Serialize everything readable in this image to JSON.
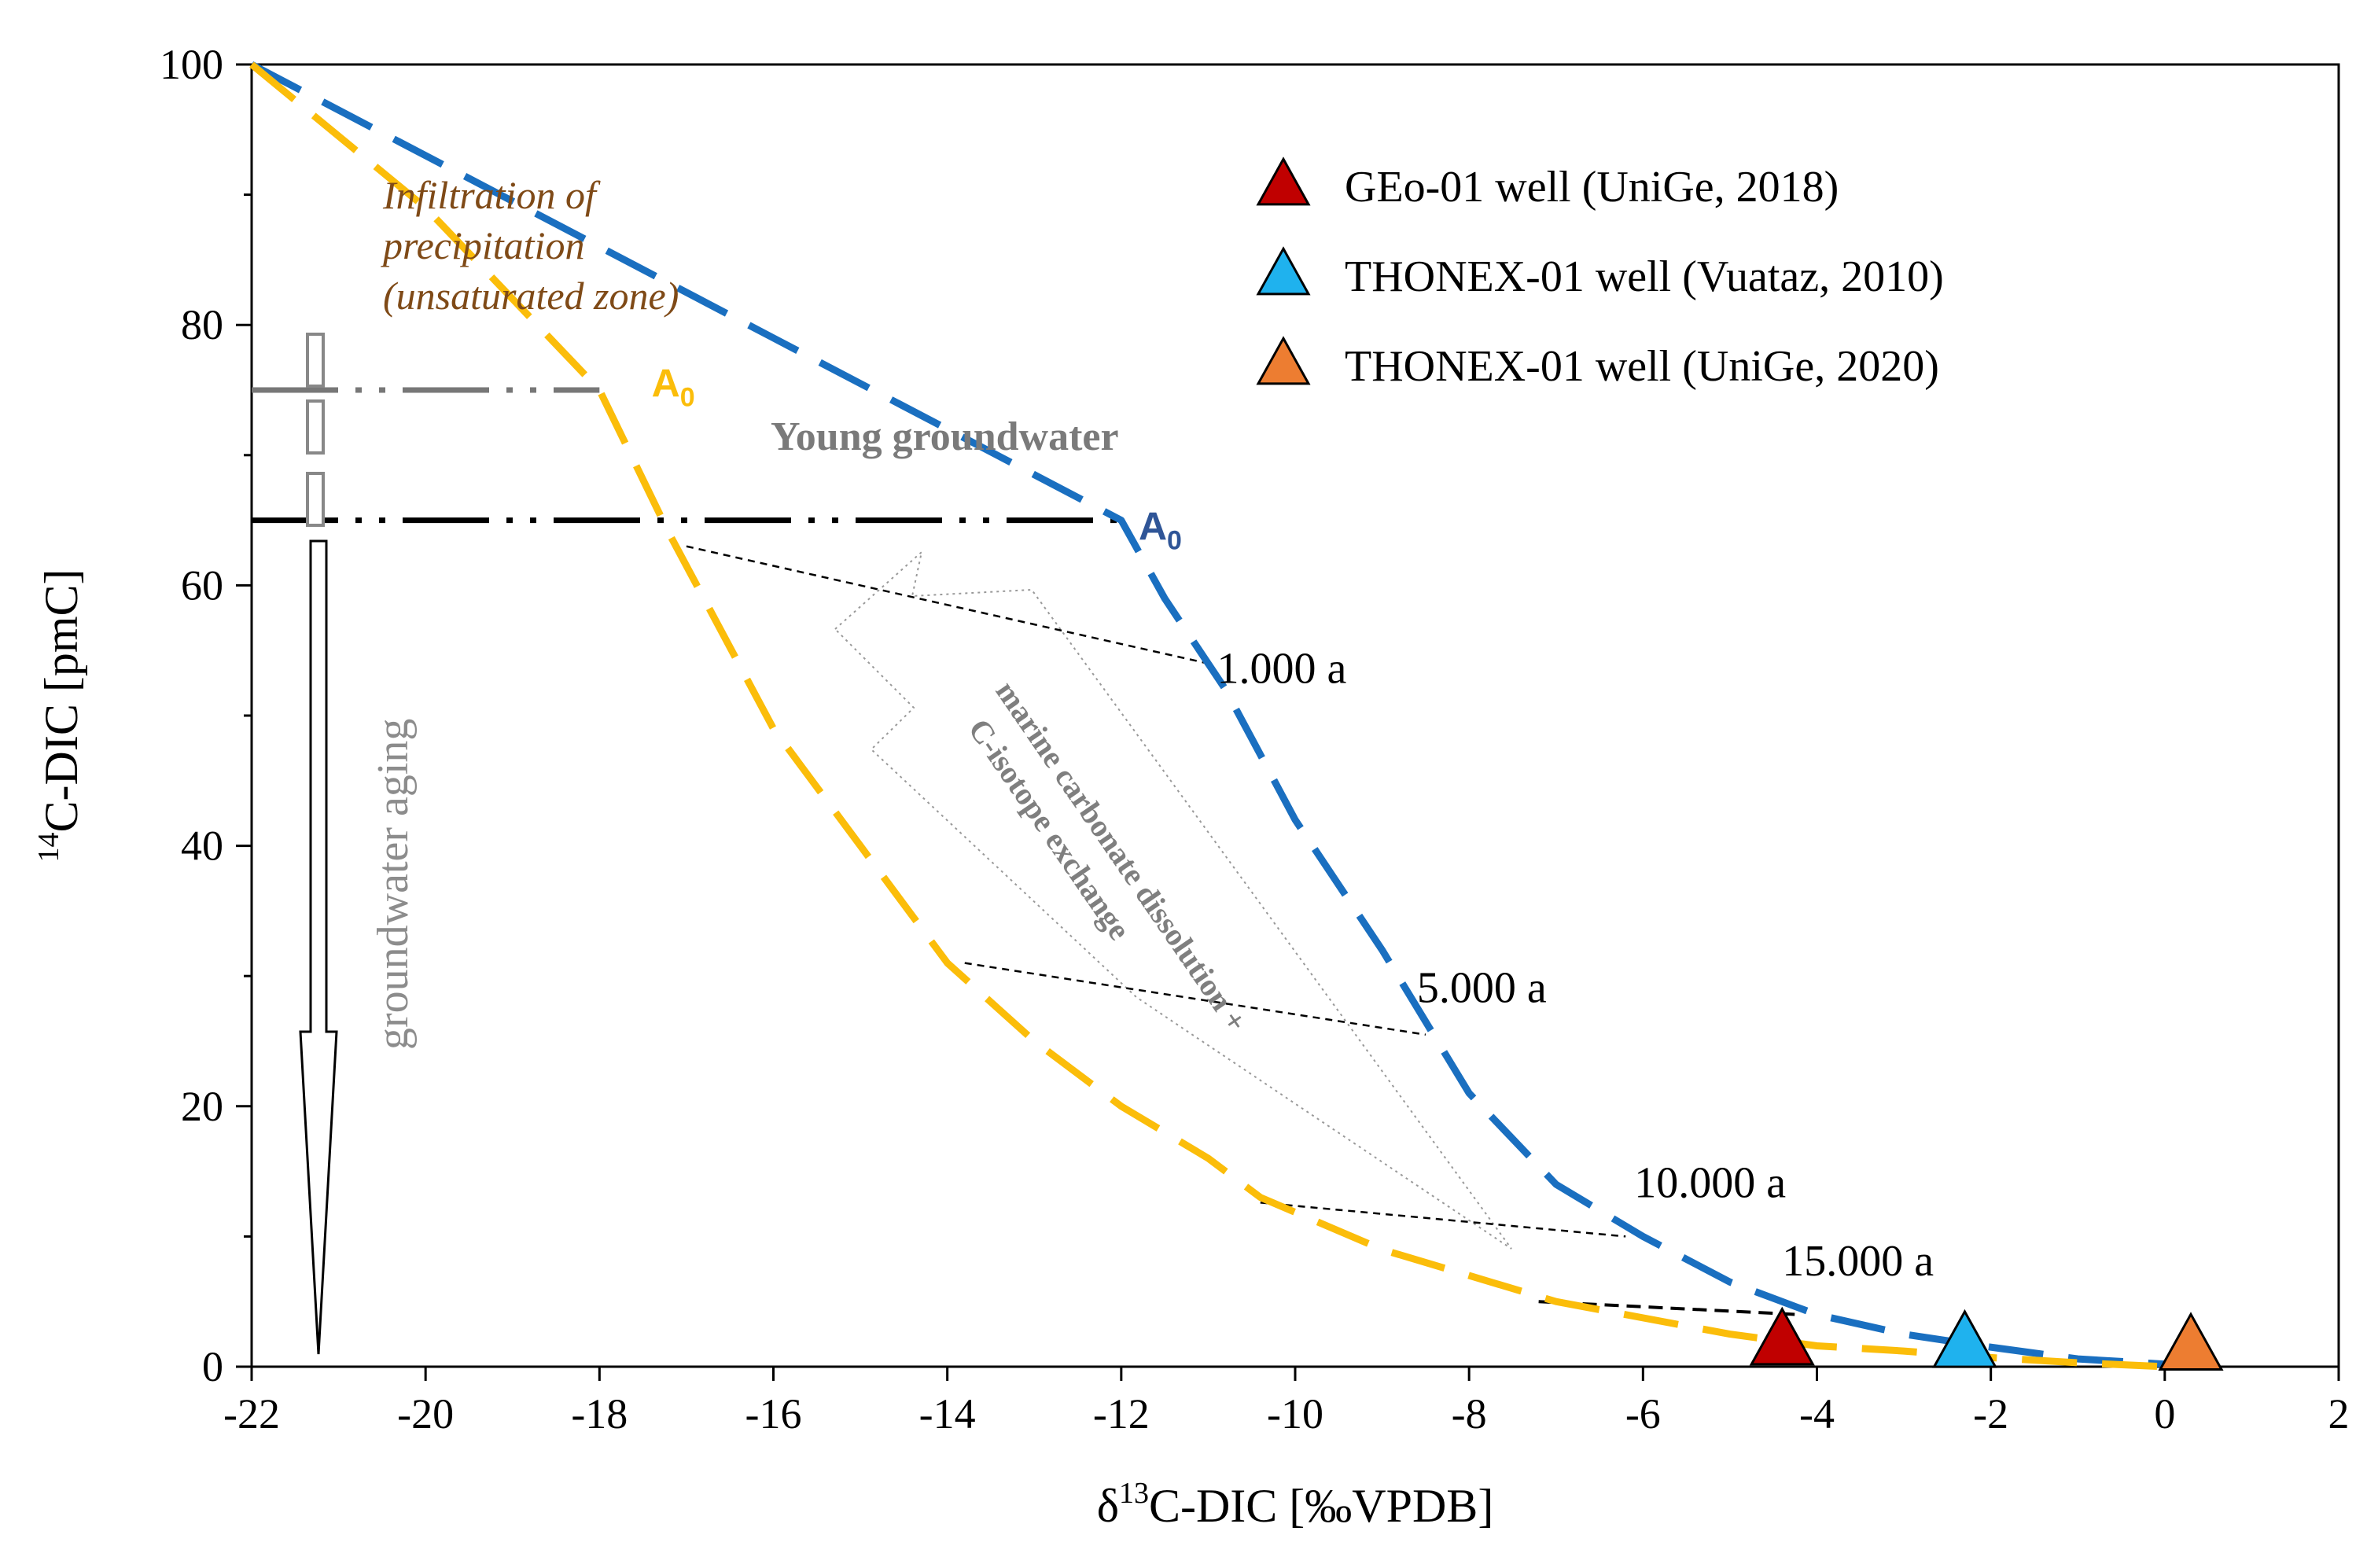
{
  "chart_data": {
    "type": "line",
    "xlabel_parts": [
      "δ",
      "13",
      "C-DIC  [‰VPDB]"
    ],
    "ylabel_parts": [
      "14",
      "C-DIC  [pmC]"
    ],
    "xlim": [
      -22,
      2
    ],
    "ylim": [
      0,
      100
    ],
    "x_ticks": [
      -22,
      -20,
      -18,
      -16,
      -14,
      -12,
      -10,
      -8,
      -6,
      -4,
      -2,
      0,
      2
    ],
    "x_tick_labels": [
      "-22",
      "-20",
      "-18",
      "-16",
      "-14",
      "-12",
      "-10",
      "-8",
      "-6",
      "-4",
      "-2",
      "0",
      "2"
    ],
    "y_ticks": [
      0,
      20,
      40,
      60,
      80,
      100
    ],
    "y_tick_labels": [
      "0",
      "20",
      "40",
      "60",
      "80",
      "100"
    ],
    "y_minor_step": 10,
    "series": [
      {
        "name": "blue-model",
        "color": "#1a6fc0",
        "style": "dashed",
        "points": [
          [
            -22,
            100
          ],
          [
            -20,
            93
          ],
          [
            -18,
            86
          ],
          [
            -16,
            79
          ],
          [
            -14,
            72
          ],
          [
            -12,
            65
          ],
          [
            -11.5,
            59
          ],
          [
            -10.8,
            52
          ],
          [
            -10,
            42
          ],
          [
            -9,
            32
          ],
          [
            -8,
            21
          ],
          [
            -7,
            14
          ],
          [
            -6,
            10
          ],
          [
            -5,
            6.5
          ],
          [
            -4,
            4
          ],
          [
            -3,
            2.5
          ],
          [
            -2,
            1.5
          ],
          [
            -1,
            0.6
          ],
          [
            0,
            0.2
          ],
          [
            0.5,
            0
          ]
        ]
      },
      {
        "name": "yellow-model",
        "color": "#fbbd0a",
        "style": "dashed",
        "points": [
          [
            -22,
            100
          ],
          [
            -20,
            89
          ],
          [
            -18,
            75
          ],
          [
            -17.2,
            64
          ],
          [
            -16,
            49
          ],
          [
            -15,
            40
          ],
          [
            -14,
            31
          ],
          [
            -13,
            25
          ],
          [
            -12,
            20
          ],
          [
            -11,
            16
          ],
          [
            -10.4,
            13
          ],
          [
            -9,
            9
          ],
          [
            -8,
            7
          ],
          [
            -7,
            5
          ],
          [
            -5,
            2.5
          ],
          [
            -4,
            1.6
          ],
          [
            -3,
            1.2
          ],
          [
            -2,
            0.7
          ],
          [
            -1,
            0.3
          ],
          [
            0,
            0
          ]
        ]
      }
    ],
    "isochrons": [
      {
        "label": "1.000 a",
        "from": [
          -17,
          63
        ],
        "to": [
          -11,
          54
        ],
        "label_at": [
          -10.9,
          52.5
        ]
      },
      {
        "label": "5.000 a",
        "from": [
          -13.8,
          31
        ],
        "to": [
          -8.5,
          25.5
        ],
        "label_at": [
          -8.6,
          28
        ]
      },
      {
        "label": "10.000 a",
        "from": [
          -10.4,
          12.6
        ],
        "to": [
          -6.2,
          10
        ],
        "label_at": [
          -6.1,
          13
        ]
      },
      {
        "label": "15.000 a",
        "from": [
          -7.2,
          5
        ],
        "to": [
          -4.2,
          4
        ],
        "label_at": [
          -4.4,
          7
        ]
      }
    ],
    "a0_lines": [
      {
        "color": "#777777",
        "y": 75,
        "x_from": -22,
        "x_to": -18
      },
      {
        "color": "#000000",
        "y": 65,
        "x_from": -22,
        "x_to": -12
      }
    ],
    "a0_labels": [
      {
        "text": "A",
        "sub": "0",
        "color": "#fbbd0a",
        "at": [
          -17.4,
          74.5
        ]
      },
      {
        "text": "A",
        "sub": "0",
        "color": "#2f5597",
        "at": [
          -11.8,
          63.5
        ]
      }
    ],
    "points": [
      {
        "name": "GEo-01 well (UniGe, 2018)",
        "x": -4.4,
        "y": 1.8,
        "color": "#c00000"
      },
      {
        "name": "THONEX-01 well (Vuataz, 2010)",
        "x": -2.3,
        "y": 1.6,
        "color": "#1fb2ee"
      },
      {
        "name": "THONEX-01 well (UniGe, 2020)",
        "x": 0.3,
        "y": 1.4,
        "color": "#ed7d31"
      }
    ],
    "legend_position": "top-right",
    "annotations": [
      {
        "name": "infiltration-label",
        "lines": [
          "Infiltration of",
          "precipitation",
          "(unsaturated zone)"
        ],
        "color": "#7f4a17"
      },
      {
        "name": "young-groundwater-label",
        "text": "Young groundwater",
        "color": "#7a7a7a"
      },
      {
        "name": "groundwater-aging-label",
        "text": "groundwater aging",
        "color": "#8c8c8c"
      },
      {
        "name": "carbonate-label",
        "lines": [
          "marine carbonate dissolution +",
          "C-isotope exchange"
        ],
        "color": "#7f7f7f"
      }
    ]
  }
}
